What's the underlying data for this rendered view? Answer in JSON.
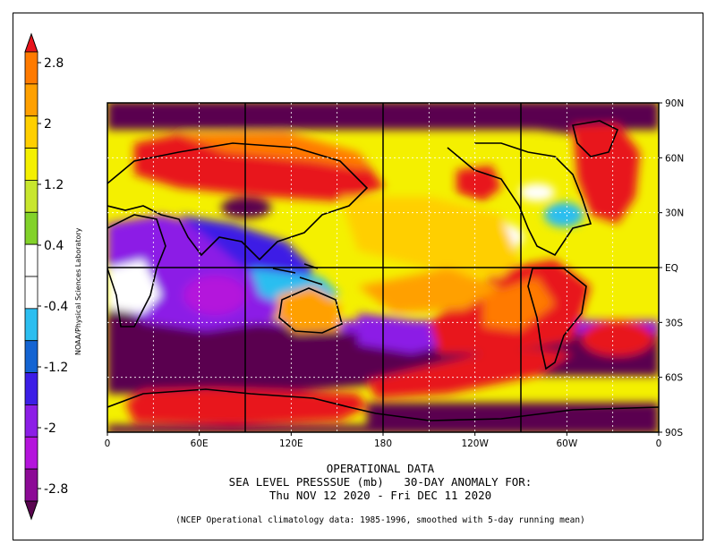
{
  "title_lines": [
    "OPERATIONAL DATA",
    "SEA LEVEL PRESSSUE (mb)   30-DAY ANOMALY FOR:",
    "Thu NOV 12 2020 - Fri DEC 11 2020"
  ],
  "footnote": "(NCEP Operational climatology data: 1985-1996, smoothed with 5-day running mean)",
  "credit": "NOAA/Physical Sciences Laboratory",
  "x_ticks": [
    "0",
    "60E",
    "120E",
    "180",
    "120W",
    "60W",
    "0"
  ],
  "y_ticks": [
    "90N",
    "60N",
    "30N",
    "EQ",
    "30S",
    "60S",
    "90S"
  ],
  "colorbar": {
    "labels": [
      "2.8",
      "2",
      "1.2",
      "0.4",
      "-0.4",
      "-1.2",
      "-2",
      "-2.8"
    ],
    "colors_top_to_bottom": [
      "#e8141c",
      "#ff7a00",
      "#ffa000",
      "#ffcf00",
      "#f4f000",
      "#c8e62e",
      "#82d22a",
      "#ffffff",
      "#ffffff",
      "#2cbef0",
      "#1464d2",
      "#3c1ee6",
      "#8c1ee6",
      "#b414dc",
      "#8c0a96",
      "#5a0550"
    ]
  },
  "map": {
    "type": "filled-contour-anomaly",
    "variable": "sea level pressure anomaly",
    "units": "mb",
    "lon_range": [
      0,
      360
    ],
    "lat_range": [
      -90,
      90
    ]
  }
}
